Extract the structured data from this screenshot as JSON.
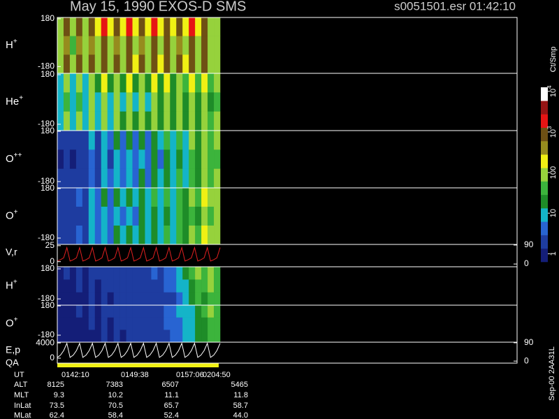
{
  "header": {
    "title": "May 15, 1990   EXOS-D SMS",
    "file": "s0051501.esr  01:42:10"
  },
  "chart_data": [
    {
      "type": "heatmap",
      "label": {
        "base": "H",
        "sup": "+"
      },
      "ylim": [
        -231,
        190
      ],
      "yticks": [
        180,
        -180
      ],
      "z": [
        [
          2.1,
          2.9,
          2.0,
          3.0,
          2.1,
          3.1,
          2.2,
          3.2,
          2.2,
          3.1,
          2.2,
          3.2,
          2.3,
          3.1,
          2.2,
          3.2,
          2.3,
          3.1,
          2.2,
          3.0,
          2.3,
          3.2,
          2.2,
          3.1,
          2.1,
          2.0
        ],
        [
          1.8,
          2.5,
          1.7,
          2.6,
          1.8,
          2.7,
          1.9,
          2.8,
          1.9,
          2.7,
          2.0,
          2.8,
          2.0,
          2.7,
          2.0,
          2.9,
          2.1,
          2.8,
          2.0,
          2.7,
          2.1,
          3.1,
          2.0,
          3.0,
          2.0,
          1.9
        ],
        [
          2.0,
          2.8,
          1.9,
          2.9,
          2.0,
          3.0,
          2.1,
          3.1,
          2.1,
          3.0,
          2.1,
          3.1,
          2.2,
          3.0,
          2.1,
          3.1,
          2.2,
          3.0,
          2.1,
          2.9,
          2.2,
          3.1,
          2.1,
          3.0,
          2.0,
          1.9
        ]
      ]
    },
    {
      "type": "heatmap",
      "label": {
        "base": "He",
        "sup": "+"
      },
      "ylim": [
        -226,
        190
      ],
      "yticks": [
        180,
        -180
      ],
      "z": [
        [
          1.0,
          1.9,
          1.0,
          2.0,
          1.1,
          2.1,
          1.2,
          2.2,
          1.2,
          2.1,
          1.3,
          2.2,
          1.3,
          2.1,
          1.3,
          2.2,
          1.4,
          2.2,
          1.4,
          2.1,
          1.5,
          2.2,
          1.5,
          2.2,
          1.6,
          1.8
        ],
        [
          0.8,
          1.6,
          0.8,
          1.7,
          0.9,
          1.8,
          1.0,
          1.9,
          1.0,
          1.8,
          1.1,
          1.9,
          1.1,
          1.8,
          1.1,
          1.9,
          1.2,
          1.9,
          1.2,
          1.8,
          1.3,
          2.0,
          1.3,
          2.0,
          1.4,
          1.7
        ],
        [
          0.9,
          1.8,
          0.9,
          1.9,
          1.0,
          2.0,
          1.1,
          2.1,
          1.1,
          2.0,
          1.2,
          2.1,
          1.2,
          2.0,
          1.2,
          2.1,
          1.3,
          2.1,
          1.3,
          2.0,
          1.4,
          2.1,
          1.4,
          2.1,
          1.5,
          1.8
        ]
      ]
    },
    {
      "type": "heatmap",
      "label": {
        "base": "O",
        "sup": "++"
      },
      "ylim": [
        -225,
        185
      ],
      "yticks": [
        180,
        -180
      ],
      "z": [
        [
          0.2,
          0.3,
          0.2,
          0.4,
          0.3,
          0.8,
          0.4,
          1.1,
          0.5,
          1.2,
          0.6,
          1.2,
          0.6,
          1.3,
          0.7,
          1.4,
          0.8,
          1.5,
          0.9,
          1.6,
          1.1,
          1.8,
          1.3,
          2.0,
          1.6,
          1.8
        ],
        [
          0.1,
          0.2,
          0.1,
          0.3,
          0.2,
          0.6,
          0.3,
          0.9,
          0.4,
          1.0,
          0.5,
          1.0,
          0.5,
          1.1,
          0.6,
          1.2,
          0.7,
          1.3,
          0.8,
          1.4,
          1.0,
          1.6,
          1.2,
          1.9,
          1.5,
          1.7
        ],
        [
          0.2,
          0.3,
          0.2,
          0.4,
          0.3,
          0.7,
          0.4,
          1.0,
          0.5,
          1.1,
          0.6,
          1.1,
          0.6,
          1.2,
          0.7,
          1.3,
          0.8,
          1.4,
          0.9,
          1.5,
          1.1,
          1.7,
          1.3,
          2.0,
          1.6,
          1.8
        ]
      ]
    },
    {
      "type": "heatmap",
      "label": {
        "base": "O",
        "sup": "+"
      },
      "ylim": [
        -226,
        185
      ],
      "yticks": [
        180,
        -180
      ],
      "z": [
        [
          0.3,
          0.4,
          0.3,
          0.5,
          0.4,
          1.0,
          0.6,
          1.2,
          0.7,
          1.3,
          0.8,
          1.3,
          0.8,
          1.4,
          0.9,
          1.5,
          1.0,
          1.6,
          1.1,
          1.7,
          1.3,
          1.9,
          1.5,
          2.2,
          1.8,
          1.9
        ],
        [
          0.2,
          0.3,
          0.2,
          0.4,
          0.3,
          0.8,
          0.5,
          1.0,
          0.6,
          1.1,
          0.7,
          1.1,
          0.7,
          1.2,
          0.8,
          1.3,
          0.9,
          1.4,
          1.0,
          1.5,
          1.2,
          1.7,
          1.4,
          2.1,
          1.7,
          1.8
        ],
        [
          0.3,
          0.4,
          0.3,
          0.5,
          0.4,
          0.9,
          0.6,
          1.1,
          0.7,
          1.2,
          0.8,
          1.2,
          0.8,
          1.3,
          0.9,
          1.4,
          1.0,
          1.5,
          1.1,
          1.6,
          1.3,
          1.8,
          1.5,
          2.2,
          1.8,
          1.9
        ]
      ]
    },
    {
      "type": "line",
      "label": "V,r",
      "ylim": [
        -8,
        27
      ],
      "yticks": [
        25,
        0
      ],
      "y2lim": [
        -13,
        93
      ],
      "y2ticks": [
        90,
        0
      ],
      "series": [
        {
          "color": "#e02020",
          "values": [
            1,
            3,
            6,
            22,
            1,
            3,
            6,
            22,
            1,
            3,
            6,
            22,
            1,
            3,
            6,
            22,
            1,
            3,
            6,
            22,
            1,
            3,
            6,
            22,
            1,
            3,
            6,
            22,
            1,
            3,
            6,
            22,
            1,
            3,
            6,
            22,
            1,
            3,
            6,
            22,
            1,
            3,
            6,
            22,
            1,
            3,
            6,
            22,
            1,
            3,
            6,
            22
          ]
        }
      ]
    },
    {
      "type": "heatmap",
      "label": {
        "base": "H",
        "sup": "+"
      },
      "ylim": [
        -255,
        205
      ],
      "yticks": [
        180,
        -180
      ],
      "z": [
        [
          0.1,
          0.2,
          0.1,
          0.2,
          0.1,
          0.2,
          0.2,
          0.2,
          0.2,
          0.3,
          0.2,
          0.3,
          0.3,
          0.4,
          0.3,
          0.5,
          0.4,
          0.6,
          0.6,
          0.9,
          1.2,
          1.5,
          1.8,
          1.6,
          1.9,
          1.7
        ],
        [
          0.1,
          0.1,
          0.1,
          0.2,
          0.1,
          0.2,
          0.1,
          0.2,
          0.2,
          0.2,
          0.2,
          0.3,
          0.2,
          0.3,
          0.3,
          0.4,
          0.3,
          0.5,
          0.5,
          0.8,
          1.1,
          1.4,
          1.7,
          1.5,
          1.8,
          1.6
        ],
        [
          0.1,
          0.1,
          0.1,
          0.1,
          0.1,
          0.2,
          0.1,
          0.2,
          0.1,
          0.2,
          0.2,
          0.2,
          0.2,
          0.3,
          0.2,
          0.3,
          0.3,
          0.4,
          0.4,
          0.7,
          1.0,
          1.3,
          1.6,
          1.4,
          1.7,
          1.5
        ]
      ]
    },
    {
      "type": "heatmap",
      "label": {
        "base": "O",
        "sup": "+"
      },
      "ylim": [
        -266,
        189
      ],
      "yticks": [
        180,
        -180
      ],
      "z": [
        [
          0.1,
          0.1,
          0.1,
          0.2,
          0.1,
          0.2,
          0.1,
          0.2,
          0.2,
          0.2,
          0.2,
          0.3,
          0.2,
          0.3,
          0.3,
          0.4,
          0.4,
          0.5,
          0.6,
          0.8,
          0.9,
          1.1,
          1.3,
          1.5,
          1.8,
          1.6
        ],
        [
          0.1,
          0.1,
          0.1,
          0.1,
          0.1,
          0.2,
          0.1,
          0.2,
          0.1,
          0.2,
          0.2,
          0.2,
          0.2,
          0.3,
          0.3,
          0.4,
          0.3,
          0.5,
          0.5,
          0.7,
          0.9,
          1.0,
          1.2,
          1.4,
          1.7,
          1.5
        ],
        [
          0.1,
          0.1,
          0.1,
          0.1,
          0.1,
          0.1,
          0.1,
          0.2,
          0.1,
          0.2,
          0.1,
          0.2,
          0.2,
          0.2,
          0.2,
          0.3,
          0.3,
          0.4,
          0.5,
          0.7,
          0.8,
          1.0,
          1.2,
          1.4,
          1.6,
          1.5
        ]
      ]
    },
    {
      "type": "line",
      "label": "E,p",
      "ylim": [
        -1300,
        4200
      ],
      "yticks": [
        4000,
        0
      ],
      "y2lim": [
        -10,
        93
      ],
      "y2ticks": [
        90,
        0
      ],
      "series": [
        {
          "color": "#ffffff",
          "values": [
            200,
            800,
            2000,
            3900,
            200,
            800,
            2000,
            3900,
            200,
            800,
            2000,
            3900,
            200,
            800,
            2000,
            3900,
            200,
            800,
            2000,
            3900,
            200,
            800,
            2000,
            3900,
            200,
            800,
            2000,
            3900,
            200,
            800,
            2000,
            3900,
            200,
            800,
            2000,
            3900,
            200,
            800,
            2000,
            3900,
            200,
            800,
            2000,
            3900,
            200,
            800,
            2000,
            3900,
            200,
            800,
            2000,
            3900
          ]
        }
      ]
    }
  ],
  "qa_label": "QA",
  "colorbar": {
    "title": "Ct/Smp",
    "zlim": [
      -0.2,
      4.1
    ],
    "colors": [
      "#141e78",
      "#1e3ca0",
      "#2864d2",
      "#14b4c8",
      "#1e8c28",
      "#3cb43c",
      "#96d23c",
      "#f0f014",
      "#968c1e",
      "#6e5014",
      "#e61414",
      "#961414",
      "#ffffff"
    ],
    "ticks": [
      {
        "value": 0,
        "label": "1"
      },
      {
        "value": 1,
        "label": "10"
      },
      {
        "value": 2,
        "label": "100"
      },
      {
        "value": 3,
        "label": "10",
        "sup": "3"
      },
      {
        "value": 4,
        "label": "10",
        "sup": "4"
      }
    ]
  },
  "table": {
    "rows": [
      {
        "label": "UT",
        "values": [
          "0142:10",
          "0149:38",
          "0157:06",
          "0204:50"
        ]
      },
      {
        "label": "ALT",
        "values": [
          "8125",
          "7383",
          "6507",
          "5465"
        ]
      },
      {
        "label": "MLT",
        "values": [
          "9.3",
          "10.2",
          "11.1",
          "11.8"
        ]
      },
      {
        "label": "InLat",
        "values": [
          "73.5",
          "70.5",
          "65.7",
          "58.7"
        ]
      },
      {
        "label": "MLat",
        "values": [
          "62.4",
          "58.4",
          "52.4",
          "44.0"
        ]
      }
    ]
  },
  "footer": "Sep-00 2AA31L"
}
